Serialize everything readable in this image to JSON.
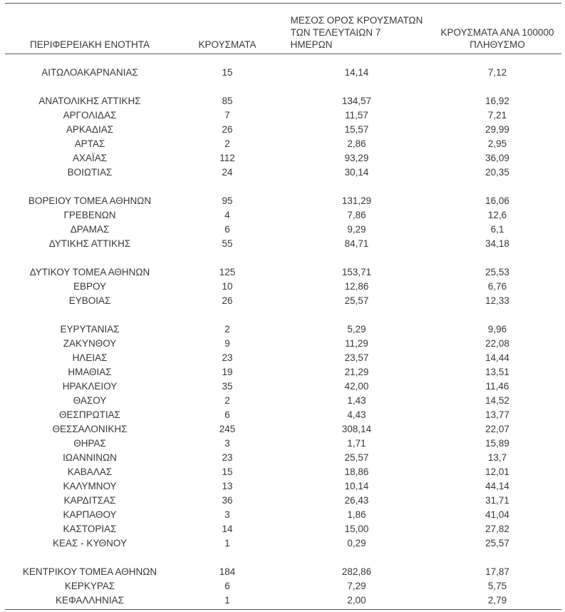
{
  "page": {
    "background": "#ffffff",
    "text_color": "#383838",
    "line_color": "#595959"
  },
  "chart_data": {
    "type": "table",
    "columns": [
      {
        "id": "region",
        "label_lines": [
          "ΠΕΡΙΦΕΡΕΙΑΚΗ ΕΝΟΤΗΤΑ"
        ]
      },
      {
        "id": "cases",
        "label_lines": [
          "ΚΡΟΥΣΜΑΤΑ"
        ]
      },
      {
        "id": "avg7",
        "label_lines": [
          "ΜΕΣΟΣ ΟΡΟΣ ΚΡΟΥΣΜΑΤΩΝ",
          "ΤΩΝ ΤΕΛΕΥΤΑΙΩΝ 7",
          "ΗΜΕΡΩΝ"
        ]
      },
      {
        "id": "per100k",
        "label_lines": [
          "ΚΡΟΥΣΜΑΤΑ ΑΝΑ 100000",
          "ΠΛΗΘΥΣΜΟ"
        ]
      }
    ],
    "groups": [
      {
        "rows": [
          {
            "region": "ΑΙΤΩΛΟΑΚΑΡΝΑΝΙΑΣ",
            "cases": "15",
            "avg7": "14,14",
            "per100k": "7,12"
          }
        ]
      },
      {
        "rows": [
          {
            "region": "ΑΝΑΤΟΛΙΚΗΣ ΑΤΤΙΚΗΣ",
            "cases": "85",
            "avg7": "134,57",
            "per100k": "16,92"
          },
          {
            "region": "ΑΡΓΟΛΙΔΑΣ",
            "cases": "7",
            "avg7": "11,57",
            "per100k": "7,21"
          },
          {
            "region": "ΑΡΚΑΔΙΑΣ",
            "cases": "26",
            "avg7": "15,57",
            "per100k": "29,99"
          },
          {
            "region": "ΑΡΤΑΣ",
            "cases": "2",
            "avg7": "2,86",
            "per100k": "2,95"
          },
          {
            "region": "ΑΧΑΪΑΣ",
            "cases": "112",
            "avg7": "93,29",
            "per100k": "36,09"
          },
          {
            "region": "ΒΟΙΩΤΙΑΣ",
            "cases": "24",
            "avg7": "30,14",
            "per100k": "20,35"
          }
        ]
      },
      {
        "rows": [
          {
            "region": "ΒΟΡΕΙΟΥ ΤΟΜΕΑ ΑΘΗΝΩΝ",
            "cases": "95",
            "avg7": "131,29",
            "per100k": "16,06"
          },
          {
            "region": "ΓΡΕΒΕΝΩΝ",
            "cases": "4",
            "avg7": "7,86",
            "per100k": "12,6"
          },
          {
            "region": "ΔΡΑΜΑΣ",
            "cases": "6",
            "avg7": "9,29",
            "per100k": "6,1"
          },
          {
            "region": "ΔΥΤΙΚΗΣ ΑΤΤΙΚΗΣ",
            "cases": "55",
            "avg7": "84,71",
            "per100k": "34,18"
          }
        ]
      },
      {
        "rows": [
          {
            "region": "ΔΥΤΙΚΟΥ ΤΟΜΕΑ ΑΘΗΝΩΝ",
            "cases": "125",
            "avg7": "153,71",
            "per100k": "25,53"
          },
          {
            "region": "ΕΒΡΟΥ",
            "cases": "10",
            "avg7": "12,86",
            "per100k": "6,76"
          },
          {
            "region": "ΕΥΒΟΙΑΣ",
            "cases": "26",
            "avg7": "25,57",
            "per100k": "12,33"
          }
        ]
      },
      {
        "rows": [
          {
            "region": "ΕΥΡΥΤΑΝΙΑΣ",
            "cases": "2",
            "avg7": "5,29",
            "per100k": "9,96"
          },
          {
            "region": "ΖΑΚΥΝΘΟΥ",
            "cases": "9",
            "avg7": "11,29",
            "per100k": "22,08"
          },
          {
            "region": "ΗΛΕΙΑΣ",
            "cases": "23",
            "avg7": "23,57",
            "per100k": "14,44"
          },
          {
            "region": "ΗΜΑΘΙΑΣ",
            "cases": "19",
            "avg7": "21,29",
            "per100k": "13,51"
          },
          {
            "region": "ΗΡΑΚΛΕΙΟΥ",
            "cases": "35",
            "avg7": "42,00",
            "per100k": "11,46"
          },
          {
            "region": "ΘΑΣΟΥ",
            "cases": "2",
            "avg7": "1,43",
            "per100k": "14,52"
          },
          {
            "region": "ΘΕΣΠΡΩΤΙΑΣ",
            "cases": "6",
            "avg7": "4,43",
            "per100k": "13,77"
          },
          {
            "region": "ΘΕΣΣΑΛΟΝΙΚΗΣ",
            "cases": "245",
            "avg7": "308,14",
            "per100k": "22,07"
          },
          {
            "region": "ΘΗΡΑΣ",
            "cases": "3",
            "avg7": "1,71",
            "per100k": "15,89"
          },
          {
            "region": "ΙΩΑΝΝΙΝΩΝ",
            "cases": "23",
            "avg7": "25,57",
            "per100k": "13,7"
          },
          {
            "region": "ΚΑΒΑΛΑΣ",
            "cases": "15",
            "avg7": "18,86",
            "per100k": "12,01"
          },
          {
            "region": "ΚΑΛΥΜΝΟΥ",
            "cases": "13",
            "avg7": "10,14",
            "per100k": "44,14"
          },
          {
            "region": "ΚΑΡΔΙΤΣΑΣ",
            "cases": "36",
            "avg7": "26,43",
            "per100k": "31,71"
          },
          {
            "region": "ΚΑΡΠΑΘΟΥ",
            "cases": "3",
            "avg7": "1,86",
            "per100k": "41,04"
          },
          {
            "region": "ΚΑΣΤΟΡΙΑΣ",
            "cases": "14",
            "avg7": "15,00",
            "per100k": "27,82"
          },
          {
            "region": "ΚΕΑΣ - ΚΥΘΝΟΥ",
            "cases": "1",
            "avg7": "0,29",
            "per100k": "25,57"
          }
        ]
      },
      {
        "rows": [
          {
            "region": "ΚΕΝΤΡΙΚΟΥ ΤΟΜΕΑ ΑΘΗΝΩΝ",
            "cases": "184",
            "avg7": "282,86",
            "per100k": "17,87"
          },
          {
            "region": "ΚΕΡΚΥΡΑΣ",
            "cases": "6",
            "avg7": "7,29",
            "per100k": "5,75"
          },
          {
            "region": "ΚΕΦΑΛΛΗΝΙΑΣ",
            "cases": "1",
            "avg7": "2,00",
            "per100k": "2,79"
          }
        ]
      }
    ]
  }
}
